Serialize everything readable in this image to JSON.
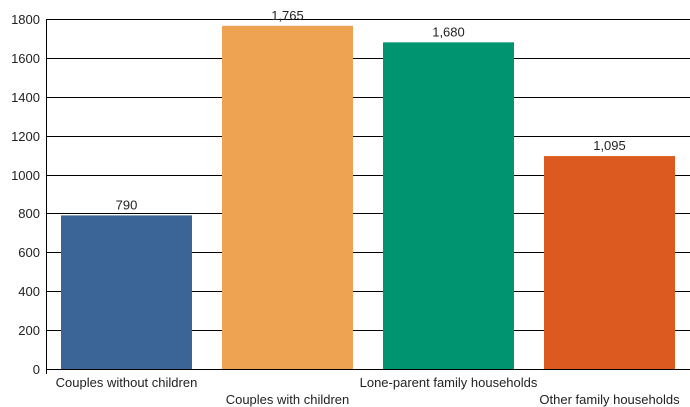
{
  "chart_data": {
    "type": "bar",
    "categories": [
      "Couples without children",
      "Couples with children",
      "Lone-parent family households",
      "Other family households"
    ],
    "values": [
      790,
      1765,
      1680,
      1095
    ],
    "data_labels": [
      "790",
      "1,765",
      "1,680",
      "1,095"
    ],
    "colors": [
      "#3b6497",
      "#eea352",
      "#009471",
      "#dc5a20"
    ],
    "ylim": [
      0,
      1800
    ],
    "yticks": [
      0,
      200,
      400,
      600,
      800,
      1000,
      1200,
      1400,
      1600,
      1800
    ],
    "grid": true,
    "legend": "none",
    "title": "",
    "xlabel": "",
    "ylabel": ""
  }
}
